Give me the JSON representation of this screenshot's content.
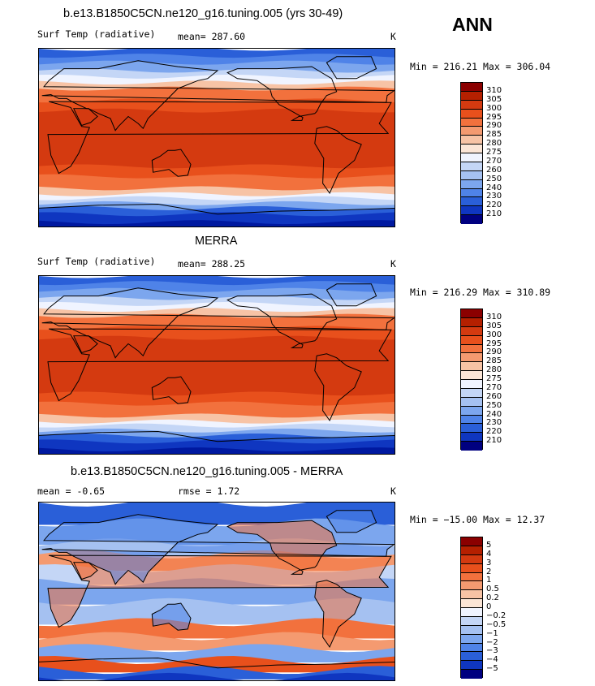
{
  "season": "ANN",
  "colors_temp": [
    "#8b0000",
    "#b52000",
    "#d43a10",
    "#e8501c",
    "#f2713d",
    "#f49a70",
    "#f7c3a5",
    "#fbe5d6",
    "#f0f4ff",
    "#c4d6f6",
    "#a5c1f1",
    "#7ca6ee",
    "#4f83e8",
    "#2a5fd8",
    "#0f36c0",
    "#0019a0",
    "#000080"
  ],
  "colors_diff": [
    "#8b0000",
    "#b52000",
    "#d43a10",
    "#e8501c",
    "#f2713d",
    "#f49a70",
    "#f7c3a5",
    "#fbe5d6",
    "#f0f4ff",
    "#c4d6f6",
    "#a5c1f1",
    "#7ca6ee",
    "#4f83e8",
    "#2a5fd8",
    "#0f36c0",
    "#0019a0",
    "#000080"
  ],
  "panels": [
    {
      "title": "b.e13.B1850C5CN.ne120_g16.tuning.005 (yrs 30-49)",
      "variable": "Surf Temp (radiative)",
      "stat_label": "mean=",
      "stat_value": "287.60",
      "stat2_label": "",
      "stat2_value": "",
      "units": "K",
      "min_max": "Min = 216.21 Max = 306.04",
      "levels": [
        "310",
        "305",
        "300",
        "295",
        "290",
        "285",
        "280",
        "275",
        "270",
        "260",
        "250",
        "240",
        "230",
        "220",
        "210"
      ],
      "kind": "model"
    },
    {
      "title": "MERRA",
      "variable": "Surf Temp (radiative)",
      "stat_label": "mean=",
      "stat_value": "288.25",
      "stat2_label": "",
      "stat2_value": "",
      "units": "K",
      "min_max": "Min = 216.29 Max = 310.89",
      "levels": [
        "310",
        "305",
        "300",
        "295",
        "290",
        "285",
        "280",
        "275",
        "270",
        "260",
        "250",
        "240",
        "230",
        "220",
        "210"
      ],
      "kind": "obs"
    },
    {
      "title": "b.e13.B1850C5CN.ne120_g16.tuning.005 - MERRA",
      "variable": "",
      "stat_label": "mean =",
      "stat_value": "-0.65",
      "stat2_label": "rmse =",
      "stat2_value": "1.72",
      "units": "K",
      "min_max": "Min = −15.00 Max =  12.37",
      "levels": [
        "5",
        "4",
        "3",
        "2",
        "1",
        "0.5",
        "0.2",
        "0",
        "−0.2",
        "−0.5",
        "−1",
        "−2",
        "−3",
        "−4",
        "−5"
      ],
      "kind": "diff"
    }
  ]
}
